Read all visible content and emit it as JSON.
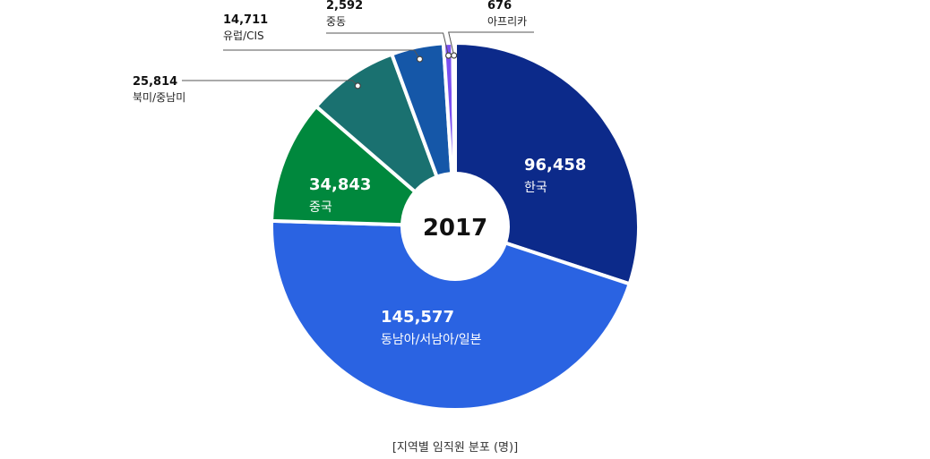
{
  "chart_data": {
    "type": "pie",
    "center_label": "2017",
    "caption": "[지역별 임직원 분포 (명)]",
    "slices": [
      {
        "label": "한국",
        "value": 96458,
        "value_text": "96,458",
        "color": "#0c2a8a",
        "label_pos": "inside"
      },
      {
        "label": "동남아/서남아/일본",
        "value": 145577,
        "value_text": "145,577",
        "color": "#2a63e2",
        "label_pos": "inside"
      },
      {
        "label": "중국",
        "value": 34843,
        "value_text": "34,843",
        "color": "#00883d",
        "label_pos": "inside"
      },
      {
        "label": "북미/중남미",
        "value": 25814,
        "value_text": "25,814",
        "color": "#1a7170",
        "label_pos": "outside"
      },
      {
        "label": "유럽/CIS",
        "value": 14711,
        "value_text": "14,711",
        "color": "#1557a8",
        "label_pos": "outside"
      },
      {
        "label": "중동",
        "value": 2592,
        "value_text": "2,592",
        "color": "#7b4ff0",
        "label_pos": "outside"
      },
      {
        "label": "아프리카",
        "value": 676,
        "value_text": "676",
        "color": "#4a8ad4",
        "label_pos": "outside"
      }
    ]
  }
}
